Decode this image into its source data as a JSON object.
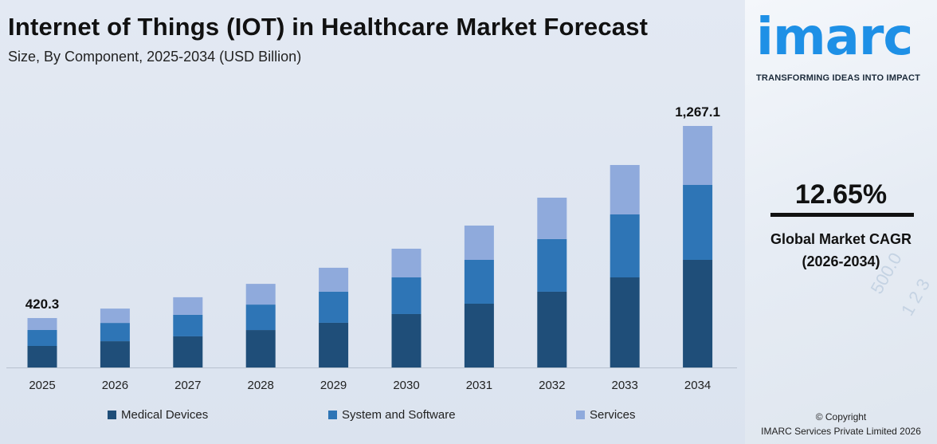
{
  "header": {
    "title": "Internet of Things (IOT) in Healthcare Market Forecast",
    "subtitle": "Size, By Component, 2025-2034 (USD Billion)"
  },
  "brand": {
    "logo": "imarc",
    "tagline": "TRANSFORMING IDEAS INTO IMPACT",
    "color": "#1e90e6"
  },
  "kpi": {
    "value": "12.65%",
    "label": "Global Market CAGR",
    "period": "(2026-2034)"
  },
  "footer": {
    "copyright": "© Copyright",
    "company": "IMARC Services Private Limited 2026"
  },
  "chart_data": {
    "type": "bar",
    "stacked": true,
    "title": "Internet of Things (IOT) in Healthcare Market Forecast",
    "subtitle": "Size, By Component, 2025-2034 (USD Billion)",
    "categories": [
      "2025",
      "2026",
      "2027",
      "2028",
      "2029",
      "2030",
      "2031",
      "2032",
      "2033",
      "2034"
    ],
    "series": [
      {
        "name": "Medical Devices",
        "color": "#1f4e79",
        "values": [
          183.0,
          206.0,
          226.9,
          255.6,
          287.6,
          326.5,
          372.1,
          424.2,
          487.1,
          564.6
        ]
      },
      {
        "name": "System and Software",
        "color": "#2e75b6",
        "values": [
          135.6,
          143.6,
          157.1,
          174.0,
          200.3,
          224.1,
          255.8,
          294.7,
          340.6,
          393.1
        ]
      },
      {
        "name": "Services",
        "color": "#8faadc",
        "values": [
          101.7,
          112.4,
          128.0,
          141.4,
          154.1,
          175.4,
          200.1,
          232.1,
          267.3,
          309.4
        ]
      }
    ],
    "data_labels": [
      {
        "category": "2025",
        "text": "420.3"
      },
      {
        "category": "2034",
        "text": "1,267.1"
      }
    ],
    "legend": "bottom",
    "grid": false,
    "yaxis_visible": false
  }
}
